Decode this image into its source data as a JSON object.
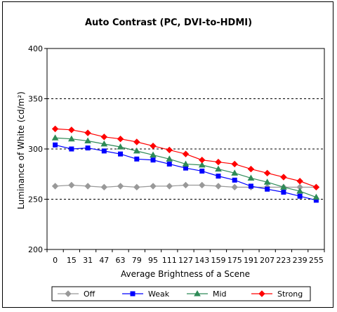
{
  "chart_data": {
    "type": "line",
    "title": "Auto Contrast (PC, DVI-to-HDMI)",
    "xlabel": "Average Brightness of a Scene",
    "ylabel": "Luminance of White (cd/m²)",
    "categories": [
      "0",
      "15",
      "31",
      "47",
      "63",
      "79",
      "95",
      "111",
      "127",
      "143",
      "159",
      "175",
      "191",
      "207",
      "223",
      "239",
      "255"
    ],
    "ylim": [
      200,
      400
    ],
    "yticks": [
      "200",
      "250",
      "300",
      "350",
      "400"
    ],
    "grid": "horizontal dashed at 250, 300, 350",
    "legend_position": "bottom",
    "series": [
      {
        "name": "Off",
        "color": "#999999",
        "marker": "diamond",
        "values": [
          263,
          264,
          263,
          262,
          263,
          262,
          263,
          263,
          264,
          264,
          263,
          262,
          262,
          262,
          262,
          262,
          262
        ]
      },
      {
        "name": "Weak",
        "color": "#0000ff",
        "marker": "square",
        "values": [
          304,
          300,
          301,
          298,
          295,
          290,
          289,
          285,
          281,
          278,
          273,
          269,
          263,
          260,
          257,
          253,
          249
        ]
      },
      {
        "name": "Mid",
        "color": "#2e8b57",
        "marker": "triangle",
        "values": [
          311,
          310,
          308,
          305,
          302,
          298,
          294,
          290,
          285,
          284,
          280,
          276,
          271,
          267,
          262,
          258,
          252
        ]
      },
      {
        "name": "Strong",
        "color": "#ff0000",
        "marker": "diamond",
        "values": [
          320,
          319,
          316,
          312,
          310,
          307,
          303,
          299,
          295,
          289,
          287,
          285,
          280,
          276,
          272,
          268,
          262
        ]
      }
    ]
  }
}
